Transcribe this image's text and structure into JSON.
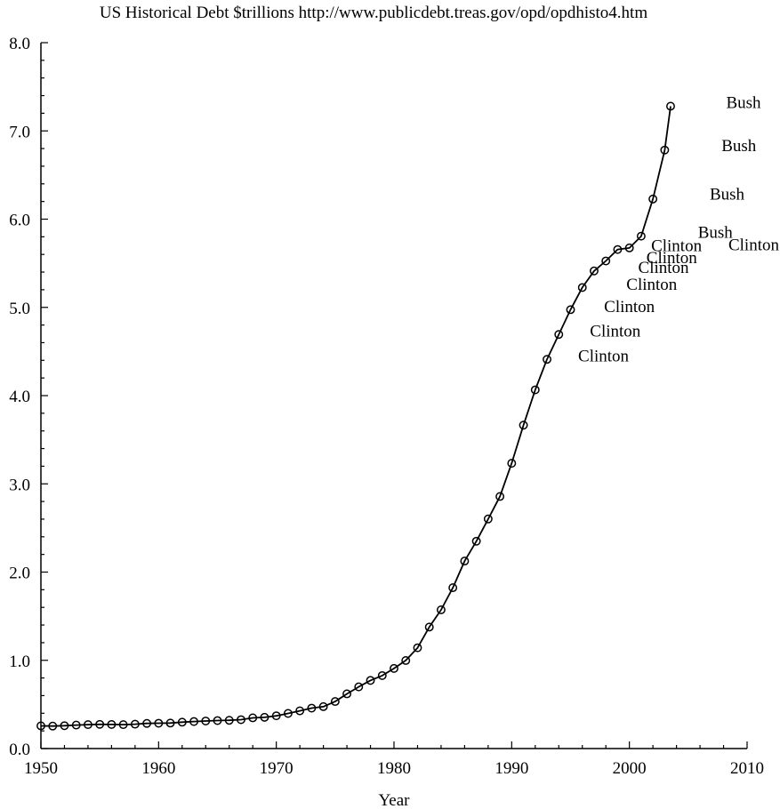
{
  "chart_data": {
    "type": "line",
    "title": "US Historical Debt $trillions http://www.publicdebt.treas.gov/opd/opdhisto4.htm",
    "xlabel": "Year",
    "ylabel": "",
    "xlim": [
      1950,
      2010
    ],
    "ylim": [
      0,
      8
    ],
    "x_ticks": [
      "1950",
      "1960",
      "1970",
      "1980",
      "1990",
      "2000",
      "2010"
    ],
    "y_ticks": [
      "0.0",
      "1.0",
      "2.0",
      "3.0",
      "4.0",
      "5.0",
      "6.0",
      "7.0",
      "8.0"
    ],
    "marker": "circle",
    "grid": false,
    "series": [
      {
        "x": [
          1950,
          1951,
          1952,
          1953,
          1954,
          1955,
          1956,
          1957,
          1958,
          1959,
          1960,
          1961,
          1962,
          1963,
          1964,
          1965,
          1966,
          1967,
          1968,
          1969,
          1970,
          1971,
          1972,
          1973,
          1974,
          1975,
          1976,
          1977,
          1978,
          1979,
          1980,
          1981,
          1982,
          1983,
          1984,
          1985,
          1986,
          1987,
          1988,
          1989,
          1990,
          1991,
          1992,
          1993,
          1994,
          1995,
          1996,
          1997,
          1998,
          1999,
          2000,
          2001,
          2002,
          2003,
          2003.5
        ],
        "values": [
          0.257,
          0.255,
          0.259,
          0.266,
          0.271,
          0.274,
          0.273,
          0.271,
          0.276,
          0.285,
          0.287,
          0.289,
          0.299,
          0.306,
          0.312,
          0.317,
          0.32,
          0.327,
          0.348,
          0.354,
          0.371,
          0.398,
          0.427,
          0.458,
          0.475,
          0.533,
          0.62,
          0.699,
          0.772,
          0.827,
          0.908,
          0.998,
          1.142,
          1.377,
          1.572,
          1.823,
          2.125,
          2.35,
          2.602,
          2.857,
          3.233,
          3.665,
          4.065,
          4.411,
          4.693,
          4.974,
          5.225,
          5.413,
          5.526,
          5.656,
          5.674,
          5.807,
          6.228,
          6.783,
          7.28
        ]
      }
    ],
    "annotations": [
      {
        "text": "Bush",
        "x": 2009.7,
        "y": 7.33
      },
      {
        "text": "Bush",
        "x": 2009.3,
        "y": 6.84
      },
      {
        "text": "Bush",
        "x": 2008.3,
        "y": 6.29
      },
      {
        "text": "Bush",
        "x": 2007.3,
        "y": 5.86
      },
      {
        "text": "Clinton",
        "x": 2012.3,
        "y": 5.72
      },
      {
        "text": "Clinton",
        "x": 2004.0,
        "y": 5.71
      },
      {
        "text": "Clinton",
        "x": 2003.6,
        "y": 5.57
      },
      {
        "text": "Clinton",
        "x": 2002.9,
        "y": 5.46
      },
      {
        "text": "Clinton",
        "x": 2001.9,
        "y": 5.27
      },
      {
        "text": "Clinton",
        "x": 2000.0,
        "y": 5.02
      },
      {
        "text": "Clinton",
        "x": 1998.8,
        "y": 4.74
      },
      {
        "text": "Clinton",
        "x": 1997.8,
        "y": 4.46
      }
    ]
  }
}
